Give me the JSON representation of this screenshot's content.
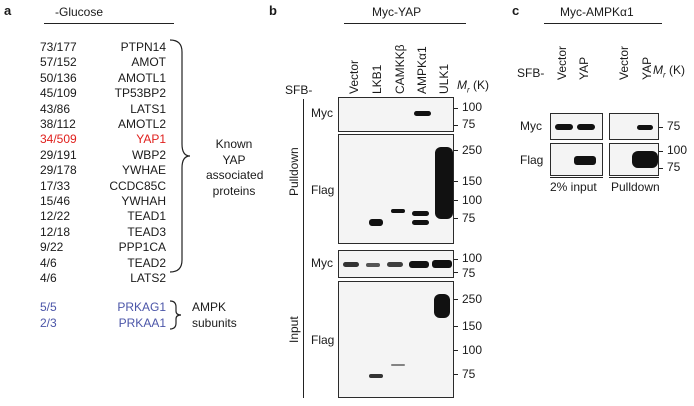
{
  "panel_a": {
    "letter": "a",
    "header": "-Glucose",
    "rows": [
      {
        "ratio": "73/177",
        "protein": "PTPN14",
        "color": "black"
      },
      {
        "ratio": "57/152",
        "protein": "AMOT",
        "color": "black"
      },
      {
        "ratio": "50/136",
        "protein": "AMOTL1",
        "color": "black"
      },
      {
        "ratio": "45/109",
        "protein": "TP53BP2",
        "color": "black"
      },
      {
        "ratio": "43/86",
        "protein": "LATS1",
        "color": "black"
      },
      {
        "ratio": "38/112",
        "protein": "AMOTL2",
        "color": "black"
      },
      {
        "ratio": "34/509",
        "protein": "YAP1",
        "color": "red"
      },
      {
        "ratio": "29/191",
        "protein": "WBP2",
        "color": "black"
      },
      {
        "ratio": "29/178",
        "protein": "YWHAE",
        "color": "black"
      },
      {
        "ratio": "17/33",
        "protein": "CCDC85C",
        "color": "black"
      },
      {
        "ratio": "15/46",
        "protein": "YWHAH",
        "color": "black"
      },
      {
        "ratio": "12/22",
        "protein": "TEAD1",
        "color": "black"
      },
      {
        "ratio": "12/18",
        "protein": "TEAD3",
        "color": "black"
      },
      {
        "ratio": "9/22",
        "protein": "PPP1CA",
        "color": "black"
      },
      {
        "ratio": "4/6",
        "protein": "TEAD2",
        "color": "black"
      },
      {
        "ratio": "4/6",
        "protein": "LATS2",
        "color": "black"
      }
    ],
    "known_label": [
      "Known",
      "YAP",
      "associated",
      "proteins"
    ],
    "ampk_rows": [
      {
        "ratio": "5/5",
        "protein": "PRKAG1"
      },
      {
        "ratio": "2/3",
        "protein": "PRKAA1"
      }
    ],
    "ampk_label": [
      "AMPK",
      "subunits"
    ],
    "colors": {
      "red": "#e0201d",
      "blue": "#4b55a8"
    }
  },
  "panel_b": {
    "letter": "b",
    "header": "Myc-YAP",
    "sfb_label": "SFB-",
    "lanes": [
      "Vector",
      "LKB1",
      "CAMKKβ",
      "AMPKα1",
      "ULK1"
    ],
    "mr_label": "M",
    "mr_sub": "r",
    "mr_unit": " (K)",
    "section_pulldown": "Pulldown",
    "section_input": "Input",
    "row_myc": "Myc",
    "row_flag": "Flag",
    "mw_myc": [
      "100",
      "75"
    ],
    "mw_flag": [
      "250",
      "150",
      "100",
      "75"
    ],
    "mw_input_myc": [
      "100",
      "75"
    ],
    "mw_input_flag": [
      "250",
      "150",
      "100",
      "75"
    ]
  },
  "panel_c": {
    "letter": "c",
    "header": "Myc-AMPKα1",
    "sfb_label": "SFB-",
    "lanes": [
      "Vector",
      "YAP",
      "Vector",
      "YAP"
    ],
    "mr_label": "M",
    "mr_sub": "r",
    "mr_unit": " (K)",
    "row_myc": "Myc",
    "row_flag": "Flag",
    "mw_myc": [
      "75"
    ],
    "mw_flag": [
      "100",
      "75"
    ],
    "group1": "2% input",
    "group2": "Pulldown"
  }
}
